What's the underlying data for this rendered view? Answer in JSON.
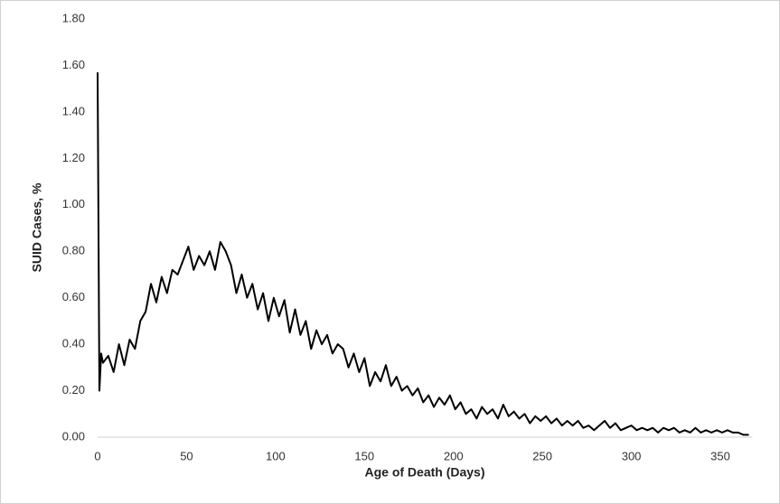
{
  "chart_data": {
    "type": "line",
    "x_label": "Age of Death (Days)",
    "y_label": "SUID Cases, %",
    "x": [
      0,
      1,
      2,
      3,
      6,
      9,
      12,
      15,
      18,
      21,
      24,
      27,
      30,
      33,
      36,
      39,
      42,
      45,
      48,
      51,
      54,
      57,
      60,
      63,
      66,
      69,
      72,
      75,
      78,
      81,
      84,
      87,
      90,
      93,
      96,
      99,
      102,
      105,
      108,
      111,
      114,
      117,
      120,
      123,
      126,
      129,
      132,
      135,
      138,
      141,
      144,
      147,
      150,
      153,
      156,
      159,
      162,
      165,
      168,
      171,
      174,
      177,
      180,
      183,
      186,
      189,
      192,
      195,
      198,
      201,
      204,
      207,
      210,
      213,
      216,
      219,
      222,
      225,
      228,
      231,
      234,
      237,
      240,
      243,
      246,
      249,
      252,
      255,
      258,
      261,
      264,
      267,
      270,
      273,
      276,
      279,
      282,
      285,
      288,
      291,
      294,
      297,
      300,
      303,
      306,
      309,
      312,
      315,
      318,
      321,
      324,
      327,
      330,
      333,
      336,
      339,
      342,
      345,
      348,
      351,
      354,
      357,
      360,
      363,
      366
    ],
    "series": [
      {
        "color": "#000000",
        "values": [
          1.57,
          0.2,
          0.36,
          0.32,
          0.35,
          0.28,
          0.4,
          0.31,
          0.42,
          0.38,
          0.5,
          0.54,
          0.66,
          0.58,
          0.69,
          0.62,
          0.72,
          0.7,
          0.76,
          0.82,
          0.72,
          0.78,
          0.74,
          0.8,
          0.72,
          0.84,
          0.8,
          0.74,
          0.62,
          0.7,
          0.6,
          0.66,
          0.55,
          0.62,
          0.5,
          0.6,
          0.52,
          0.59,
          0.45,
          0.55,
          0.44,
          0.5,
          0.38,
          0.46,
          0.4,
          0.44,
          0.36,
          0.4,
          0.38,
          0.3,
          0.36,
          0.28,
          0.34,
          0.22,
          0.28,
          0.24,
          0.31,
          0.22,
          0.26,
          0.2,
          0.22,
          0.18,
          0.21,
          0.15,
          0.18,
          0.13,
          0.17,
          0.14,
          0.18,
          0.12,
          0.15,
          0.1,
          0.12,
          0.08,
          0.13,
          0.1,
          0.12,
          0.08,
          0.14,
          0.09,
          0.11,
          0.08,
          0.1,
          0.06,
          0.09,
          0.07,
          0.09,
          0.06,
          0.08,
          0.05,
          0.07,
          0.05,
          0.07,
          0.04,
          0.05,
          0.03,
          0.05,
          0.07,
          0.04,
          0.06,
          0.03,
          0.04,
          0.05,
          0.03,
          0.04,
          0.03,
          0.04,
          0.02,
          0.04,
          0.03,
          0.04,
          0.02,
          0.03,
          0.02,
          0.04,
          0.02,
          0.03,
          0.02,
          0.03,
          0.02,
          0.03,
          0.02,
          0.02,
          0.01,
          0.01
        ]
      }
    ],
    "xlim": [
      0,
      368
    ],
    "xticks": [
      0,
      50,
      100,
      150,
      200,
      250,
      300,
      350
    ],
    "ylim": [
      0,
      1.8
    ],
    "yticks": [
      {
        "value": 0,
        "label": "0.00"
      },
      {
        "value": 0.2,
        "label": "0.20"
      },
      {
        "value": 0.4,
        "label": "0.40"
      },
      {
        "value": 0.6,
        "label": "0.60"
      },
      {
        "value": 0.8,
        "label": "0.80"
      },
      {
        "value": 1.0,
        "label": "1.00"
      },
      {
        "value": 1.2,
        "label": "1.20"
      },
      {
        "value": 1.4,
        "label": "1.40"
      },
      {
        "value": 1.6,
        "label": "1.60"
      },
      {
        "value": 1.8,
        "label": "1.80"
      }
    ],
    "grid": false
  }
}
